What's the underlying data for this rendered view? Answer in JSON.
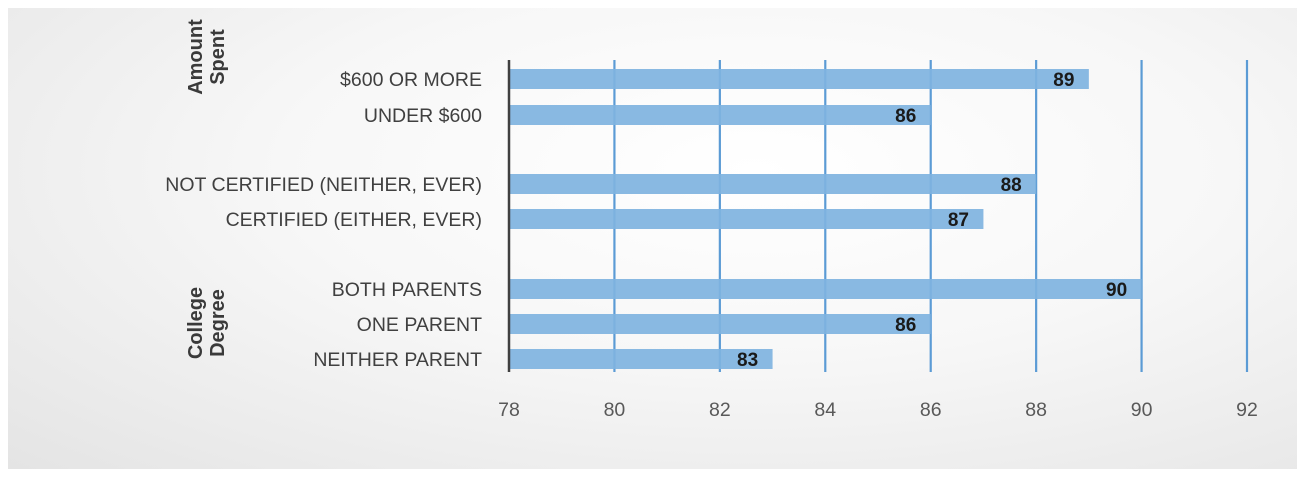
{
  "chart_data": {
    "type": "bar",
    "orientation": "horizontal",
    "x_axis": {
      "min": 78,
      "max": 92,
      "major_unit": 2
    },
    "tick_labels": [
      "78",
      "80",
      "82",
      "84",
      "86",
      "88",
      "90",
      "92"
    ],
    "grid": true,
    "bar_color": "#7fb3e0",
    "gridline_color": "#5b9bd5",
    "groups": [
      {
        "label_lines": [
          "Amount",
          "Spent"
        ],
        "bars": [
          {
            "category": "$600 OR MORE",
            "value": 89,
            "data_label": "89"
          },
          {
            "category": "UNDER $600",
            "value": 86,
            "data_label": "86"
          }
        ]
      },
      {
        "label_lines": [],
        "bars": [
          {
            "category": "NOT CERTIFIED (NEITHER, EVER)",
            "value": 88,
            "data_label": "88"
          },
          {
            "category": "CERTIFIED (EITHER, EVER)",
            "value": 87,
            "data_label": "87"
          }
        ]
      },
      {
        "label_lines": [
          "College",
          "Degree"
        ],
        "bars": [
          {
            "category": "BOTH PARENTS",
            "value": 90,
            "data_label": "90"
          },
          {
            "category": "ONE PARENT",
            "value": 86,
            "data_label": "86"
          },
          {
            "category": "NEITHER PARENT",
            "value": 83,
            "data_label": "83"
          }
        ]
      }
    ]
  }
}
